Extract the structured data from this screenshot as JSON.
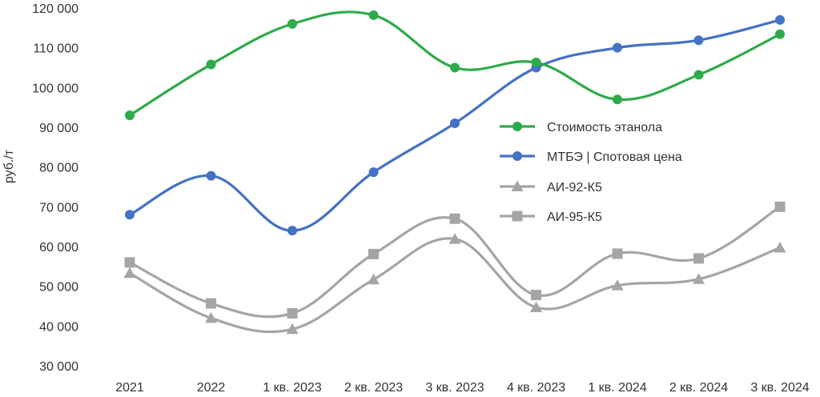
{
  "chart_data": {
    "type": "line",
    "title": "",
    "ylabel": "руб./т",
    "xlabel": "",
    "ylim": [
      30000,
      120000
    ],
    "y_ticks": [
      "30 000",
      "40 000",
      "50 000",
      "60 000",
      "70 000",
      "80 000",
      "90 000",
      "100 000",
      "110 000",
      "120 000"
    ],
    "categories": [
      "2021",
      "2022",
      "1 кв. 2023",
      "2 кв. 2023",
      "3 кв. 2023",
      "4 кв. 2023",
      "1 кв. 2024",
      "2 кв. 2024",
      "3 кв. 2024"
    ],
    "grid": false,
    "legend_position": "right",
    "series": [
      {
        "name": "Стоимость этанола",
        "color": "#2eaa4a",
        "marker": "circle",
        "values": [
          93000,
          105800,
          116000,
          118200,
          105000,
          106300,
          97000,
          103200,
          113400
        ]
      },
      {
        "name": "МТБЭ | Спотовая цена",
        "color": "#4472c4",
        "marker": "circle",
        "values": [
          68000,
          77800,
          64000,
          78700,
          91000,
          105000,
          110000,
          111900,
          117000
        ]
      },
      {
        "name": "АИ-92-К5",
        "color": "#a5a5a5",
        "marker": "triangle",
        "values": [
          53300,
          42000,
          39200,
          51700,
          61900,
          44700,
          50200,
          51800,
          59700
        ]
      },
      {
        "name": "АИ-95-К5",
        "color": "#a5a5a5",
        "marker": "square",
        "values": [
          56000,
          45700,
          43200,
          58100,
          67000,
          47800,
          58200,
          57000,
          70000
        ]
      }
    ]
  }
}
